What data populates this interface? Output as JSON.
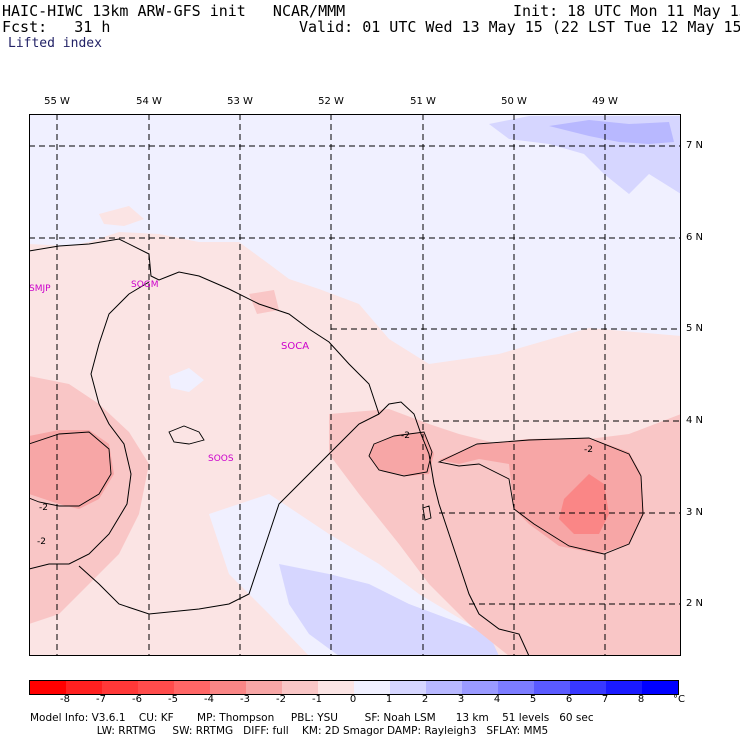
{
  "header": {
    "model": "HAIC-HIWC 13km ARW-GFS init   NCAR/MMM",
    "fcst": "Fcst:   31 h",
    "init": "Init: 18 UTC Mon 11 May 15",
    "valid": "Valid: 01 UTC Wed 13 May 15 (22 LST Tue 12 May 15)",
    "field": "Lifted index"
  },
  "longitude_labels": [
    "55 W",
    "54 W",
    "53 W",
    "52 W",
    "51 W",
    "50 W",
    "49 W"
  ],
  "latitude_labels": [
    "7 N",
    "6 N",
    "5 N",
    "4 N",
    "3 N",
    "2 N"
  ],
  "stations": [
    "SMJP",
    "SOGM",
    "SOCA",
    "SOOS"
  ],
  "contour_labels": [
    "-2",
    "-2",
    "-2",
    "-2"
  ],
  "colorbar": {
    "ticks": [
      "-8",
      "-7",
      "-6",
      "-5",
      "-4",
      "-3",
      "-2",
      "-1",
      "0",
      "1",
      "2",
      "3",
      "4",
      "5",
      "6",
      "7",
      "8"
    ],
    "unit": "°C",
    "colors": [
      "#ff0000",
      "#ff2020",
      "#ff3838",
      "#ff4c4c",
      "#ff6666",
      "#fa8686",
      "#f7a6a6",
      "#f9c6c6",
      "#fbe4e4",
      "#f0f0ff",
      "#d6d6ff",
      "#b8b8ff",
      "#9a9aff",
      "#7c7cff",
      "#5a5aff",
      "#3838ff",
      "#1a1aff",
      "#0000ff"
    ]
  },
  "model_info": {
    "line1": "Model Info: V3.6.1    CU: KF       MP: Thompson     PBL: YSU        SF: Noah LSM      13 km    51 levels   60 sec",
    "line2": "                    LW: RRTMG     SW: RRTMG   DIFF: full    KM: 2D Smagor DAMP: Rayleigh3   SFLAY: MM5"
  },
  "colors": {
    "neutral_pink": "#fbe4e4",
    "light_pink": "#f9c6c6",
    "mid_pink": "#f7a6a6",
    "deep_pink": "#fa8686",
    "light_blue": "#f0f0ff",
    "mid_blue": "#d6d6ff",
    "deep_blue": "#b8b8ff"
  }
}
